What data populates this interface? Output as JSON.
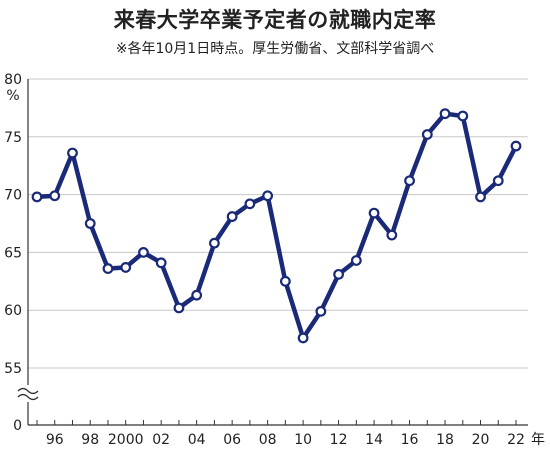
{
  "chart_data": {
    "type": "line",
    "title": "来春大学卒業予定者の就職内定率",
    "subtitle": "※各年10月1日時点。厚生労働省、文部科学省調べ",
    "ylabel": "%",
    "xunit": "年",
    "ylim": [
      50,
      80
    ],
    "y_axis_break": true,
    "y_tick_labels": [
      "0",
      "55",
      "60",
      "65",
      "70",
      "75",
      "80"
    ],
    "grid": true,
    "x": [
      1995,
      1996,
      1997,
      1998,
      1999,
      2000,
      2001,
      2002,
      2003,
      2004,
      2005,
      2006,
      2007,
      2008,
      2009,
      2010,
      2011,
      2012,
      2013,
      2014,
      2015,
      2016,
      2017,
      2018,
      2019,
      2020,
      2021,
      2022
    ],
    "x_tick_labels": [
      "96",
      "98",
      "2000",
      "02",
      "04",
      "06",
      "08",
      "10",
      "12",
      "14",
      "16",
      "18",
      "20",
      "22"
    ],
    "x_tick_years": [
      1996,
      1998,
      2000,
      2002,
      2004,
      2006,
      2008,
      2010,
      2012,
      2014,
      2016,
      2018,
      2020,
      2022
    ],
    "series": [
      {
        "values": [
          69.8,
          69.9,
          73.6,
          67.5,
          63.6,
          63.7,
          65.0,
          64.1,
          60.2,
          61.3,
          65.8,
          68.1,
          69.2,
          69.9,
          62.5,
          57.6,
          59.9,
          63.1,
          64.3,
          68.4,
          66.5,
          71.2,
          75.2,
          77.0,
          76.8,
          69.8,
          71.2,
          74.2
        ],
        "color": "#1a2a78"
      }
    ]
  }
}
